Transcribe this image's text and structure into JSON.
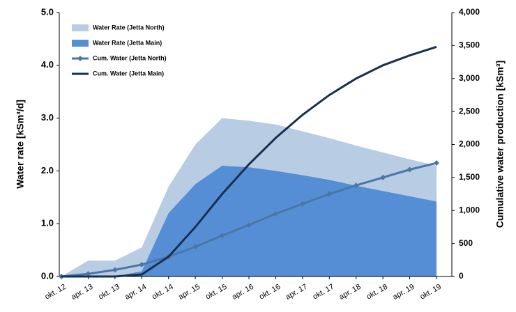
{
  "chart_data": {
    "type": "area-line",
    "y_label": "Water rate [kSm³/d]",
    "y2_label": "Cumulative water production [kSm³]",
    "categories": [
      "okt. 12",
      "apr. 13",
      "okt. 13",
      "apr. 14",
      "okt. 14",
      "apr. 15",
      "okt. 15",
      "apr. 16",
      "okt. 16",
      "apr. 17",
      "okt. 17",
      "apr. 18",
      "okt. 18",
      "apr. 19",
      "okt. 19"
    ],
    "ylim": [
      0,
      5
    ],
    "yticks": [
      {
        "value": 0,
        "label": "0.0"
      },
      {
        "value": 1,
        "label": "1.0"
      },
      {
        "value": 2,
        "label": "2.0"
      },
      {
        "value": 3,
        "label": "3.0"
      },
      {
        "value": 4,
        "label": "4.0"
      },
      {
        "value": 5,
        "label": "5.0"
      }
    ],
    "y2lim": [
      0,
      4000
    ],
    "y2ticks": [
      0,
      500,
      {
        "value": 1000,
        "label": "1,000"
      },
      {
        "value": 1500,
        "label": "1,500"
      },
      {
        "value": 2000,
        "label": "2,000"
      },
      {
        "value": 2500,
        "label": "2,500"
      },
      {
        "value": 3000,
        "label": "3,000"
      },
      {
        "value": 3500,
        "label": "3,500"
      },
      {
        "value": 4000,
        "label": "4,000"
      }
    ],
    "series": [
      {
        "name": "Water Rate (Jetta North)",
        "kind": "area",
        "stacked": true,
        "color": "#b8cce4",
        "values": [
          0,
          0.3,
          0.3,
          0.45,
          0.5,
          0.75,
          0.9,
          0.88,
          0.88,
          0.83,
          0.79,
          0.76,
          0.73,
          0.7,
          0.68
        ]
      },
      {
        "name": "Water Rate (Jetta Main)",
        "kind": "area",
        "stacked": true,
        "color": "#558ed5",
        "values": [
          0,
          0,
          0,
          0.1,
          1.2,
          1.75,
          2.1,
          2.07,
          2.0,
          1.92,
          1.83,
          1.72,
          1.62,
          1.52,
          1.42
        ]
      },
      {
        "name": "Cum. Water (Jetta North)",
        "kind": "line",
        "marker": "diamond",
        "axis": "y2",
        "color": "#4a76a8",
        "values": [
          0,
          40,
          100,
          180,
          300,
          450,
          620,
          780,
          950,
          1100,
          1250,
          1380,
          1500,
          1620,
          1720
        ]
      },
      {
        "name": "Cum. Water (Jetta Main)",
        "kind": "line",
        "axis": "y2",
        "color": "#17304f",
        "values": [
          0,
          0,
          0,
          30,
          300,
          750,
          1250,
          1700,
          2100,
          2450,
          2750,
          3000,
          3200,
          3350,
          3480
        ]
      }
    ]
  }
}
